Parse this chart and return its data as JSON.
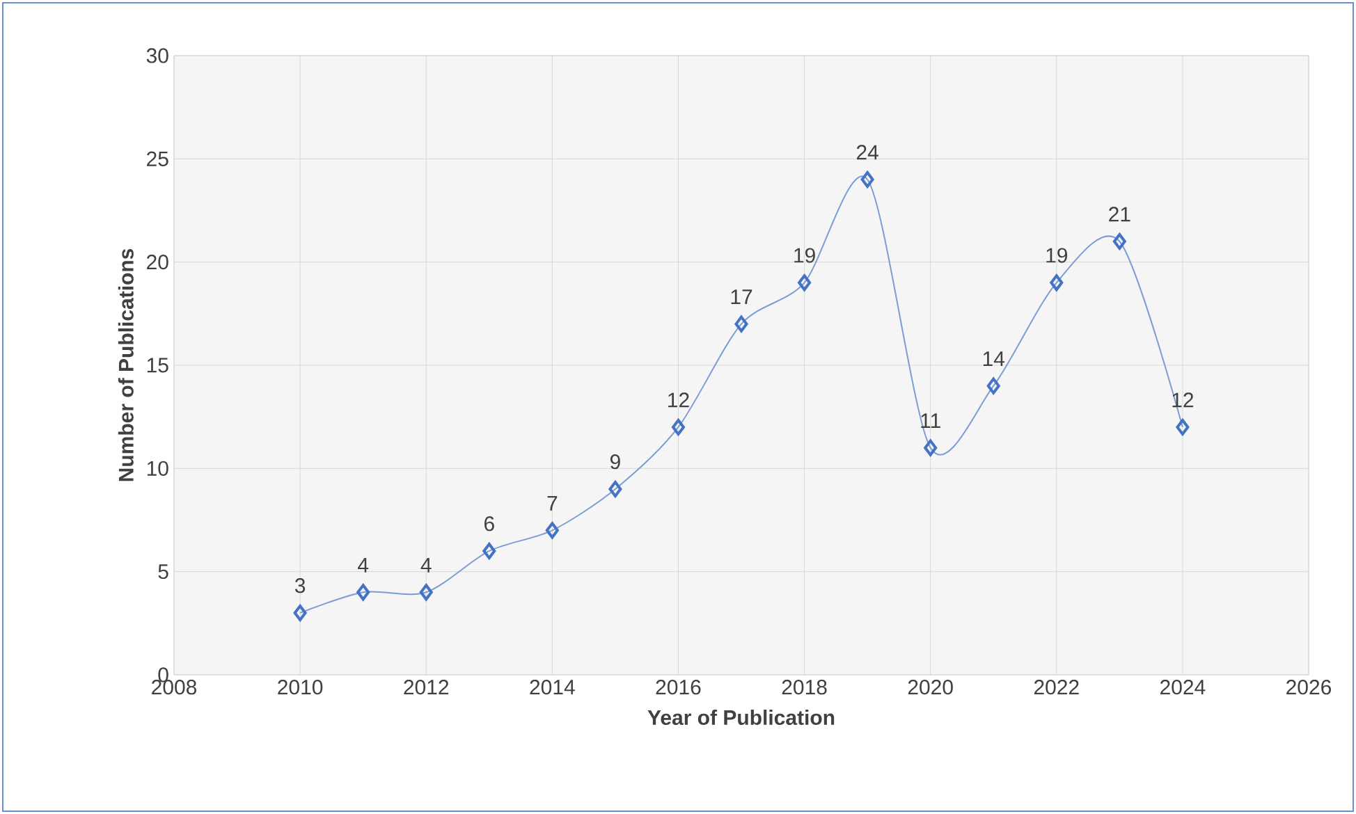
{
  "chart_data": {
    "type": "line",
    "xlabel": "Year of Publication",
    "ylabel": "Number of Publications",
    "x": [
      2010,
      2011,
      2012,
      2013,
      2014,
      2015,
      2016,
      2017,
      2018,
      2019,
      2020,
      2021,
      2022,
      2023,
      2024
    ],
    "values": [
      3,
      4,
      4,
      6,
      7,
      9,
      12,
      17,
      19,
      24,
      11,
      14,
      19,
      21,
      12
    ],
    "color": "#4472c4",
    "marker": "diamond",
    "data_labels": true,
    "grid": true,
    "xlim": [
      2008,
      2026
    ],
    "xticks": [
      2008,
      2010,
      2012,
      2014,
      2016,
      2018,
      2020,
      2022,
      2024,
      2026
    ],
    "ylim": [
      0,
      30
    ],
    "yticks": [
      0,
      5,
      10,
      15,
      20,
      25,
      30
    ]
  }
}
